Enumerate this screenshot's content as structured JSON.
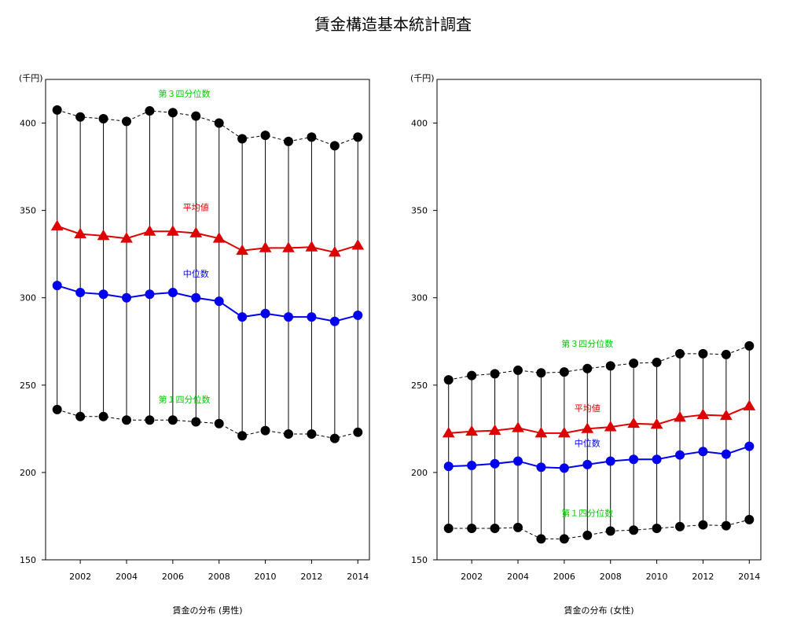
{
  "title": "賃金構造基本統計調査",
  "chart_data": [
    {
      "type": "line",
      "xlabel": "賃金の分布 (男性)",
      "ylabel": "(千円)",
      "xlim": [
        2000.5,
        2014.5
      ],
      "ylim": [
        150,
        425
      ],
      "xticks": [
        2002,
        2004,
        2006,
        2008,
        2010,
        2012,
        2014
      ],
      "yticks": [
        150,
        200,
        250,
        300,
        350,
        400
      ],
      "x": [
        2001,
        2002,
        2003,
        2004,
        2005,
        2006,
        2007,
        2008,
        2009,
        2010,
        2011,
        2012,
        2013,
        2014
      ],
      "grid": false,
      "series": [
        {
          "name": "第３四分位数",
          "style": "dashed",
          "marker": "circle",
          "color": "#000000",
          "label_color": "#00cc00",
          "label_x": 2006.5,
          "label_y": 415,
          "values": [
            407.5,
            403.5,
            402.5,
            401,
            407,
            406,
            404,
            400,
            391,
            393,
            389.5,
            392,
            387,
            392
          ]
        },
        {
          "name": "平均値",
          "style": "solid",
          "marker": "triangle",
          "color": "#dd0000",
          "label_color": "#dd0000",
          "label_x": 2007,
          "label_y": 350,
          "values": [
            341,
            336.5,
            335.5,
            334,
            338,
            338,
            337,
            334,
            327,
            328.5,
            328.5,
            329,
            326,
            330
          ]
        },
        {
          "name": "中位数",
          "style": "solid",
          "marker": "circle",
          "color": "#0000ee",
          "label_color": "#0000ee",
          "label_x": 2007,
          "label_y": 312,
          "values": [
            307,
            303,
            302,
            300,
            302,
            303,
            300,
            298,
            289,
            291,
            289,
            289,
            286.5,
            290
          ]
        },
        {
          "name": "第１四分位数",
          "style": "dashed",
          "marker": "circle",
          "color": "#000000",
          "label_color": "#00cc00",
          "label_x": 2006.5,
          "label_y": 240,
          "values": [
            236,
            232,
            232,
            230,
            230,
            230,
            229,
            228,
            221,
            224,
            222,
            222,
            219.5,
            223
          ]
        }
      ]
    },
    {
      "type": "line",
      "xlabel": "賃金の分布 (女性)",
      "ylabel": "(千円)",
      "xlim": [
        2000.5,
        2014.5
      ],
      "ylim": [
        150,
        425
      ],
      "xticks": [
        2002,
        2004,
        2006,
        2008,
        2010,
        2012,
        2014
      ],
      "yticks": [
        150,
        200,
        250,
        300,
        350,
        400
      ],
      "x": [
        2001,
        2002,
        2003,
        2004,
        2005,
        2006,
        2007,
        2008,
        2009,
        2010,
        2011,
        2012,
        2013,
        2014
      ],
      "grid": false,
      "series": [
        {
          "name": "第３四分位数",
          "style": "dashed",
          "marker": "circle",
          "color": "#000000",
          "label_color": "#00cc00",
          "label_x": 2007,
          "label_y": 272,
          "values": [
            253,
            255.5,
            256.5,
            258.5,
            257,
            257.5,
            259.5,
            261,
            262.5,
            263,
            268,
            268,
            267.5,
            272.5
          ]
        },
        {
          "name": "平均値",
          "style": "solid",
          "marker": "triangle",
          "color": "#dd0000",
          "label_color": "#dd0000",
          "label_x": 2007,
          "label_y": 235,
          "values": [
            222.5,
            223.5,
            224,
            225.5,
            222.5,
            222.5,
            225,
            226,
            228,
            227.5,
            231.5,
            233,
            232.5,
            238
          ]
        },
        {
          "name": "中位数",
          "style": "solid",
          "marker": "circle",
          "color": "#0000ee",
          "label_color": "#0000ee",
          "label_x": 2007,
          "label_y": 215,
          "values": [
            203.5,
            204,
            205,
            206.5,
            203,
            202.5,
            204.5,
            206.5,
            207.5,
            207.5,
            210,
            212,
            210.5,
            215
          ]
        },
        {
          "name": "第１四分位数",
          "style": "dashed",
          "marker": "circle",
          "color": "#000000",
          "label_color": "#00cc00",
          "label_x": 2007,
          "label_y": 175,
          "values": [
            168,
            168,
            168,
            168.5,
            162,
            162,
            164,
            166.5,
            167,
            168,
            169,
            170,
            169.5,
            173
          ]
        }
      ]
    }
  ]
}
